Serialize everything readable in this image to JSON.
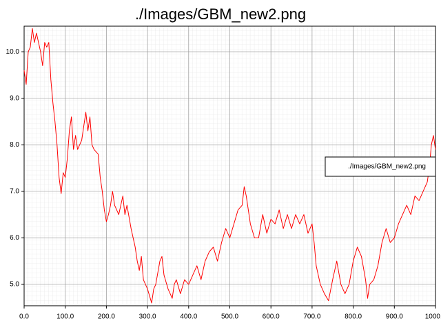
{
  "chart_data": {
    "type": "line",
    "title": "./Images/GBM_new2.png",
    "x": [
      0,
      5,
      10,
      15,
      20,
      25,
      30,
      40,
      45,
      50,
      55,
      60,
      65,
      70,
      75,
      80,
      85,
      90,
      95,
      100,
      105,
      110,
      115,
      120,
      125,
      130,
      140,
      150,
      155,
      160,
      165,
      170,
      180,
      185,
      190,
      195,
      200,
      205,
      210,
      215,
      220,
      230,
      240,
      245,
      250,
      260,
      270,
      275,
      280,
      285,
      290,
      300,
      305,
      310,
      315,
      320,
      330,
      335,
      340,
      350,
      360,
      365,
      370,
      380,
      390,
      400,
      410,
      420,
      430,
      440,
      450,
      460,
      470,
      480,
      490,
      500,
      510,
      520,
      530,
      535,
      540,
      550,
      560,
      570,
      580,
      590,
      600,
      610,
      620,
      630,
      640,
      650,
      660,
      670,
      680,
      690,
      700,
      705,
      710,
      720,
      730,
      740,
      750,
      760,
      770,
      780,
      790,
      800,
      810,
      820,
      830,
      835,
      840,
      850,
      860,
      870,
      880,
      890,
      900,
      910,
      920,
      930,
      940,
      950,
      960,
      970,
      980,
      985,
      990,
      995,
      1000
    ],
    "series": [
      {
        "name": "./Images/GBM_new2.png",
        "color": "#ff0000",
        "values": [
          9.6,
          9.3,
          10.0,
          10.1,
          10.5,
          10.2,
          10.4,
          10.0,
          9.7,
          10.2,
          10.1,
          10.2,
          9.4,
          8.9,
          8.5,
          8.0,
          7.3,
          6.95,
          7.4,
          7.3,
          7.7,
          8.3,
          8.6,
          7.9,
          8.2,
          7.9,
          8.1,
          8.7,
          8.3,
          8.6,
          8.0,
          7.9,
          7.8,
          7.3,
          7.0,
          6.6,
          6.35,
          6.5,
          6.7,
          7.0,
          6.7,
          6.5,
          6.9,
          6.5,
          6.7,
          6.2,
          5.8,
          5.5,
          5.3,
          5.6,
          5.1,
          4.9,
          4.75,
          4.6,
          4.9,
          5.0,
          5.5,
          5.6,
          5.2,
          4.9,
          4.7,
          5.0,
          5.1,
          4.8,
          5.1,
          5.0,
          5.2,
          5.4,
          5.1,
          5.5,
          5.7,
          5.8,
          5.5,
          5.9,
          6.2,
          6.0,
          6.3,
          6.6,
          6.7,
          7.1,
          6.9,
          6.3,
          6.0,
          6.0,
          6.5,
          6.1,
          6.4,
          6.3,
          6.6,
          6.2,
          6.5,
          6.2,
          6.5,
          6.3,
          6.5,
          6.1,
          6.3,
          5.9,
          5.4,
          5.0,
          4.8,
          4.65,
          5.1,
          5.5,
          5.0,
          4.8,
          5.0,
          5.5,
          5.8,
          5.6,
          5.1,
          4.7,
          5.0,
          5.1,
          5.4,
          5.9,
          6.2,
          5.9,
          6.0,
          6.3,
          6.5,
          6.7,
          6.5,
          6.9,
          6.8,
          7.0,
          7.2,
          7.5,
          8.0,
          8.2,
          7.9
        ]
      }
    ],
    "xlim": [
      0,
      1000
    ],
    "ylim": [
      4.54,
      10.55
    ],
    "xticks": [
      {
        "value": 0,
        "label": "0.0"
      },
      {
        "value": 100,
        "label": "100.0"
      },
      {
        "value": 200,
        "label": "200.0"
      },
      {
        "value": 300,
        "label": "300.0"
      },
      {
        "value": 400,
        "label": "400.0"
      },
      {
        "value": 500,
        "label": "500.0"
      },
      {
        "value": 600,
        "label": "600.0"
      },
      {
        "value": 700,
        "label": "700.0"
      },
      {
        "value": 800,
        "label": "800.0"
      },
      {
        "value": 900,
        "label": "900.0"
      },
      {
        "value": 1000,
        "label": "1000.0"
      }
    ],
    "yticks": [
      {
        "value": 5,
        "label": "5.0"
      },
      {
        "value": 6,
        "label": "6.0"
      },
      {
        "value": 7,
        "label": "7.0"
      },
      {
        "value": 8,
        "label": "8.0"
      },
      {
        "value": 9,
        "label": "9.0"
      },
      {
        "value": 10,
        "label": "10.0"
      }
    ],
    "grid": true,
    "legend": "right"
  }
}
